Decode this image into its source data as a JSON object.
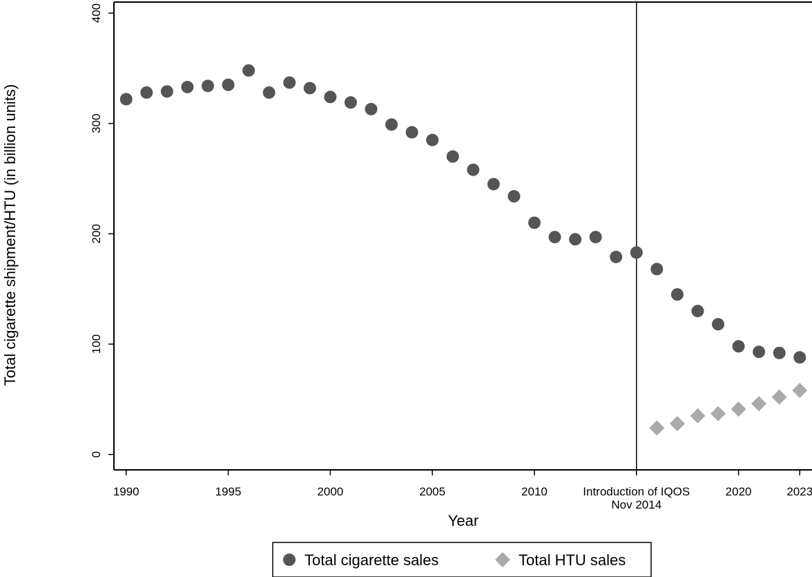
{
  "chart_data": {
    "type": "scatter",
    "title": "",
    "xlabel": "Year",
    "ylabel": "Total cigarette shipment/HTU (in billion units)",
    "xlim": [
      1989.4,
      2023.6
    ],
    "ylim": [
      -14,
      410
    ],
    "grid": false,
    "legend_position": "bottom",
    "x_ticks": [
      {
        "value": 1990,
        "label": "1990"
      },
      {
        "value": 1995,
        "label": "1995"
      },
      {
        "value": 2000,
        "label": "2000"
      },
      {
        "value": 2005,
        "label": "2005"
      },
      {
        "value": 2010,
        "label": "2010"
      },
      {
        "value": 2020,
        "label": "2020"
      },
      {
        "value": 2023,
        "label": "2023"
      }
    ],
    "y_ticks": [
      {
        "value": 0,
        "label": "0"
      },
      {
        "value": 100,
        "label": "100"
      },
      {
        "value": 200,
        "label": "200"
      },
      {
        "value": 300,
        "label": "300"
      },
      {
        "value": 400,
        "label": "400"
      }
    ],
    "annotations": [
      {
        "x": 2015,
        "line1": "Introduction of IQOS",
        "line2": "Nov 2014"
      }
    ],
    "series": [
      {
        "name": "Total cigarette sales",
        "marker": "circle",
        "color": "#555555",
        "x": [
          1990,
          1991,
          1992,
          1993,
          1994,
          1995,
          1996,
          1997,
          1998,
          1999,
          2000,
          2001,
          2002,
          2003,
          2004,
          2005,
          2006,
          2007,
          2008,
          2009,
          2010,
          2011,
          2012,
          2013,
          2014,
          2015,
          2016,
          2017,
          2018,
          2019,
          2020,
          2021,
          2022,
          2023
        ],
        "values": [
          322,
          328,
          329,
          333,
          334,
          335,
          348,
          328,
          337,
          332,
          324,
          319,
          313,
          299,
          292,
          285,
          270,
          258,
          245,
          234,
          210,
          197,
          195,
          197,
          179,
          183,
          168,
          145,
          130,
          118,
          98,
          93,
          92,
          88
        ]
      },
      {
        "name": "Total HTU sales",
        "marker": "diamond",
        "color": "#aaaaaa",
        "x": [
          2016,
          2017,
          2018,
          2019,
          2020,
          2021,
          2022,
          2023
        ],
        "values": [
          24,
          28,
          35,
          37,
          41,
          46,
          52,
          58
        ]
      }
    ]
  }
}
